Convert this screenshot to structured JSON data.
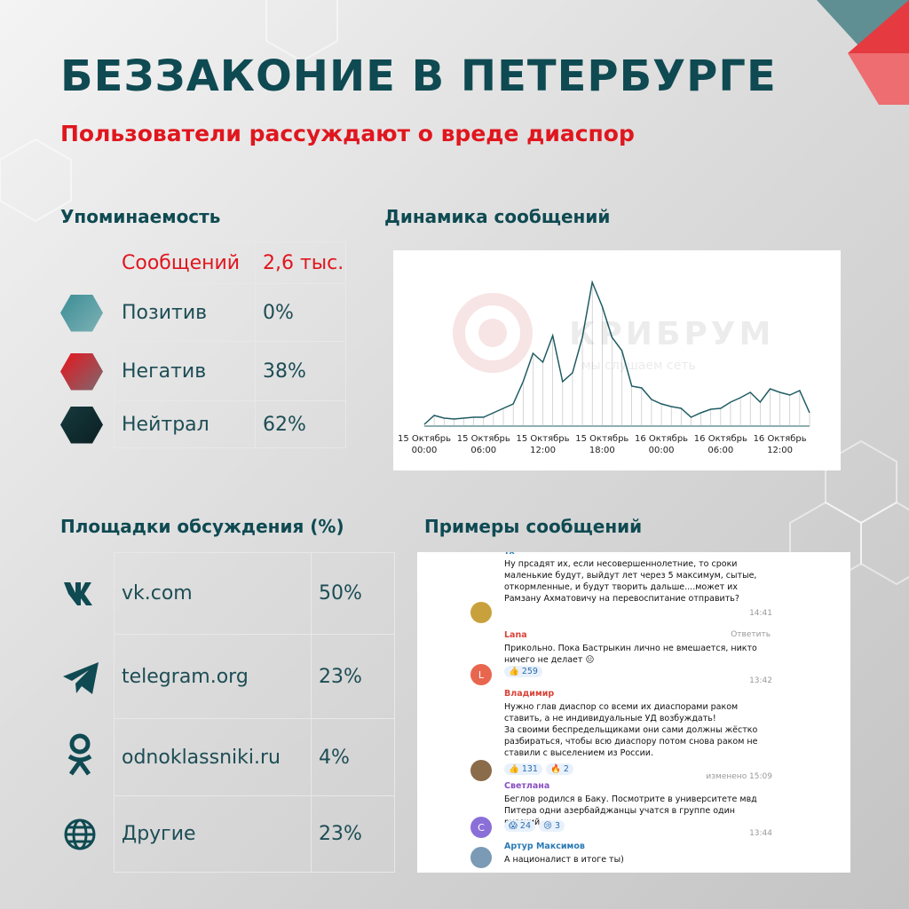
{
  "header": {
    "title": "БЕЗЗАКОНИЕ В ПЕТЕРБУРГЕ",
    "subtitle": "Пользователи рассуждают о вреде диаспор"
  },
  "mentions": {
    "title": "Упоминаемость",
    "rows": [
      [
        "Сообщений",
        "2,6 тыс."
      ],
      [
        "Позитив",
        "0%"
      ],
      [
        "Негатив",
        "38%"
      ],
      [
        "Нейтрал",
        "62%"
      ]
    ]
  },
  "platforms": {
    "title": "Площадки обсуждения (%)",
    "rows": [
      [
        "vk.com",
        "50%"
      ],
      [
        "telegram.org",
        "23%"
      ],
      [
        "odnoklassniki.ru",
        "4%"
      ],
      [
        "Другие",
        "23%"
      ]
    ]
  },
  "watermark": {
    "name": "КРИБРУМ",
    "slogan": "мы слушаем сеть"
  },
  "chart_data": {
    "type": "line",
    "title": "Динамика сообщений",
    "color": "#1f5c63",
    "categories": [
      "15 Октябрь 00:00",
      null,
      null,
      null,
      null,
      null,
      "15 Октябрь 06:00",
      null,
      null,
      null,
      null,
      null,
      "15 Октябрь 12:00",
      null,
      null,
      null,
      null,
      null,
      "15 Октябрь 18:00",
      null,
      null,
      null,
      null,
      null,
      "16 Октябрь 00:00",
      null,
      null,
      null,
      null,
      null,
      "16 Октябрь 06:00",
      null,
      null,
      null,
      null,
      null,
      "16 Октябрь 12:00",
      null,
      null,
      null
    ],
    "values": [
      2,
      12,
      9,
      8,
      9,
      10,
      10,
      15,
      20,
      25,
      50,
      82,
      72,
      102,
      50,
      60,
      100,
      162,
      135,
      100,
      85,
      45,
      43,
      30,
      25,
      22,
      20,
      10,
      15,
      19,
      20,
      27,
      32,
      38,
      27,
      42,
      38,
      35,
      40,
      15
    ],
    "ylim": [
      0,
      170
    ]
  },
  "messages": {
    "title": "Примеры сообщений",
    "items": [
      {
        "author": "тх",
        "text": "Ну прсадят их, если несовершеннолетние, то сроки маленькие будут, выйдут лет через 5 максимум, сытые, откормленные, и будут творить дальше....может их Рамзану Ахматовичу на перевоспитание отправить?",
        "time": "14:41"
      },
      {
        "author": "Lana",
        "reply": "Ответить",
        "avatar": "L",
        "text": "Прикольно. Пока Бастрыкин лично не вмешается, никто ничего не делает 😐",
        "reactions": [
          "👍 259"
        ],
        "time": "13:42"
      },
      {
        "author": "Владимир",
        "text": "Нужно глав диаспор со всеми их диаспорами раком ставить, а не индивидуальные УД возбуждать!\nЗа своими беспредельщиками они сами должны жёстко разбираться, чтобы всю диаспору потом снова раком не ставили с выселением из России.",
        "reactions": [
          "👍 131",
          "🔥 2"
        ],
        "time": "изменено 15:09"
      },
      {
        "author": "Светлана",
        "avatar": "С",
        "text": "Беглов родился в Баку. Посмотрите в университете мвд Питера одни азербайджанцы учатся в группе один русский.",
        "reactions": [
          "😱 24",
          "😢 3"
        ],
        "time": "13:44"
      },
      {
        "author": "Артур Максимов",
        "text": "А националист в итоге ты)"
      }
    ]
  }
}
